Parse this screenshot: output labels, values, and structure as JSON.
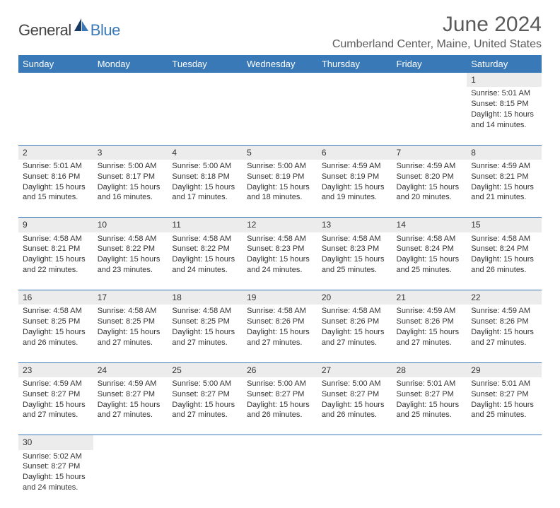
{
  "brand": {
    "part1": "General",
    "part2": "Blue"
  },
  "title": "June 2024",
  "location": "Cumberland Center, Maine, United States",
  "colors": {
    "header_bg": "#3a79b7",
    "header_text": "#ffffff",
    "daynum_bg": "#ececec",
    "row_border": "#3a79b7",
    "title_color": "#5a5a5a",
    "body_text": "#333333"
  },
  "day_names": [
    "Sunday",
    "Monday",
    "Tuesday",
    "Wednesday",
    "Thursday",
    "Friday",
    "Saturday"
  ],
  "weeks": [
    [
      null,
      null,
      null,
      null,
      null,
      null,
      {
        "n": "1",
        "sr": "Sunrise: 5:01 AM",
        "ss": "Sunset: 8:15 PM",
        "d1": "Daylight: 15 hours",
        "d2": "and 14 minutes."
      }
    ],
    [
      {
        "n": "2",
        "sr": "Sunrise: 5:01 AM",
        "ss": "Sunset: 8:16 PM",
        "d1": "Daylight: 15 hours",
        "d2": "and 15 minutes."
      },
      {
        "n": "3",
        "sr": "Sunrise: 5:00 AM",
        "ss": "Sunset: 8:17 PM",
        "d1": "Daylight: 15 hours",
        "d2": "and 16 minutes."
      },
      {
        "n": "4",
        "sr": "Sunrise: 5:00 AM",
        "ss": "Sunset: 8:18 PM",
        "d1": "Daylight: 15 hours",
        "d2": "and 17 minutes."
      },
      {
        "n": "5",
        "sr": "Sunrise: 5:00 AM",
        "ss": "Sunset: 8:19 PM",
        "d1": "Daylight: 15 hours",
        "d2": "and 18 minutes."
      },
      {
        "n": "6",
        "sr": "Sunrise: 4:59 AM",
        "ss": "Sunset: 8:19 PM",
        "d1": "Daylight: 15 hours",
        "d2": "and 19 minutes."
      },
      {
        "n": "7",
        "sr": "Sunrise: 4:59 AM",
        "ss": "Sunset: 8:20 PM",
        "d1": "Daylight: 15 hours",
        "d2": "and 20 minutes."
      },
      {
        "n": "8",
        "sr": "Sunrise: 4:59 AM",
        "ss": "Sunset: 8:21 PM",
        "d1": "Daylight: 15 hours",
        "d2": "and 21 minutes."
      }
    ],
    [
      {
        "n": "9",
        "sr": "Sunrise: 4:58 AM",
        "ss": "Sunset: 8:21 PM",
        "d1": "Daylight: 15 hours",
        "d2": "and 22 minutes."
      },
      {
        "n": "10",
        "sr": "Sunrise: 4:58 AM",
        "ss": "Sunset: 8:22 PM",
        "d1": "Daylight: 15 hours",
        "d2": "and 23 minutes."
      },
      {
        "n": "11",
        "sr": "Sunrise: 4:58 AM",
        "ss": "Sunset: 8:22 PM",
        "d1": "Daylight: 15 hours",
        "d2": "and 24 minutes."
      },
      {
        "n": "12",
        "sr": "Sunrise: 4:58 AM",
        "ss": "Sunset: 8:23 PM",
        "d1": "Daylight: 15 hours",
        "d2": "and 24 minutes."
      },
      {
        "n": "13",
        "sr": "Sunrise: 4:58 AM",
        "ss": "Sunset: 8:23 PM",
        "d1": "Daylight: 15 hours",
        "d2": "and 25 minutes."
      },
      {
        "n": "14",
        "sr": "Sunrise: 4:58 AM",
        "ss": "Sunset: 8:24 PM",
        "d1": "Daylight: 15 hours",
        "d2": "and 25 minutes."
      },
      {
        "n": "15",
        "sr": "Sunrise: 4:58 AM",
        "ss": "Sunset: 8:24 PM",
        "d1": "Daylight: 15 hours",
        "d2": "and 26 minutes."
      }
    ],
    [
      {
        "n": "16",
        "sr": "Sunrise: 4:58 AM",
        "ss": "Sunset: 8:25 PM",
        "d1": "Daylight: 15 hours",
        "d2": "and 26 minutes."
      },
      {
        "n": "17",
        "sr": "Sunrise: 4:58 AM",
        "ss": "Sunset: 8:25 PM",
        "d1": "Daylight: 15 hours",
        "d2": "and 27 minutes."
      },
      {
        "n": "18",
        "sr": "Sunrise: 4:58 AM",
        "ss": "Sunset: 8:25 PM",
        "d1": "Daylight: 15 hours",
        "d2": "and 27 minutes."
      },
      {
        "n": "19",
        "sr": "Sunrise: 4:58 AM",
        "ss": "Sunset: 8:26 PM",
        "d1": "Daylight: 15 hours",
        "d2": "and 27 minutes."
      },
      {
        "n": "20",
        "sr": "Sunrise: 4:58 AM",
        "ss": "Sunset: 8:26 PM",
        "d1": "Daylight: 15 hours",
        "d2": "and 27 minutes."
      },
      {
        "n": "21",
        "sr": "Sunrise: 4:59 AM",
        "ss": "Sunset: 8:26 PM",
        "d1": "Daylight: 15 hours",
        "d2": "and 27 minutes."
      },
      {
        "n": "22",
        "sr": "Sunrise: 4:59 AM",
        "ss": "Sunset: 8:26 PM",
        "d1": "Daylight: 15 hours",
        "d2": "and 27 minutes."
      }
    ],
    [
      {
        "n": "23",
        "sr": "Sunrise: 4:59 AM",
        "ss": "Sunset: 8:27 PM",
        "d1": "Daylight: 15 hours",
        "d2": "and 27 minutes."
      },
      {
        "n": "24",
        "sr": "Sunrise: 4:59 AM",
        "ss": "Sunset: 8:27 PM",
        "d1": "Daylight: 15 hours",
        "d2": "and 27 minutes."
      },
      {
        "n": "25",
        "sr": "Sunrise: 5:00 AM",
        "ss": "Sunset: 8:27 PM",
        "d1": "Daylight: 15 hours",
        "d2": "and 27 minutes."
      },
      {
        "n": "26",
        "sr": "Sunrise: 5:00 AM",
        "ss": "Sunset: 8:27 PM",
        "d1": "Daylight: 15 hours",
        "d2": "and 26 minutes."
      },
      {
        "n": "27",
        "sr": "Sunrise: 5:00 AM",
        "ss": "Sunset: 8:27 PM",
        "d1": "Daylight: 15 hours",
        "d2": "and 26 minutes."
      },
      {
        "n": "28",
        "sr": "Sunrise: 5:01 AM",
        "ss": "Sunset: 8:27 PM",
        "d1": "Daylight: 15 hours",
        "d2": "and 25 minutes."
      },
      {
        "n": "29",
        "sr": "Sunrise: 5:01 AM",
        "ss": "Sunset: 8:27 PM",
        "d1": "Daylight: 15 hours",
        "d2": "and 25 minutes."
      }
    ],
    [
      {
        "n": "30",
        "sr": "Sunrise: 5:02 AM",
        "ss": "Sunset: 8:27 PM",
        "d1": "Daylight: 15 hours",
        "d2": "and 24 minutes."
      },
      null,
      null,
      null,
      null,
      null,
      null
    ]
  ]
}
